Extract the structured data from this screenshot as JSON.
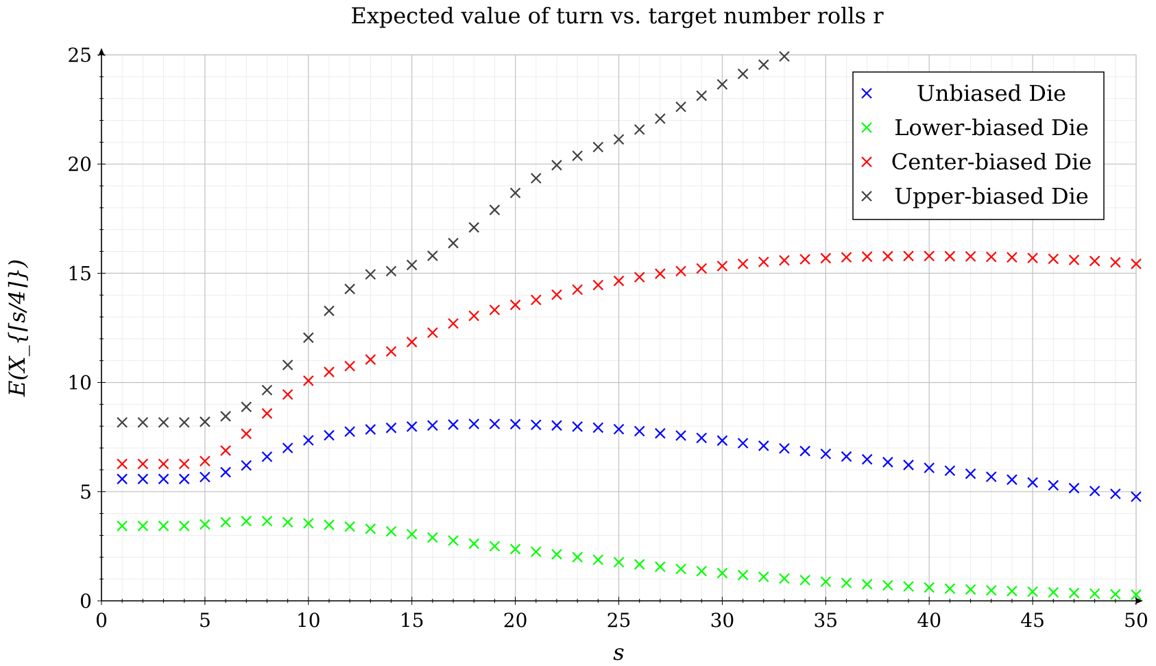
{
  "chart_data": {
    "type": "scatter",
    "title": "Expected value of turn vs. target number rolls r",
    "xlabel": "s",
    "ylabel": "E(X_{⌈s/4⌉})",
    "xlim": [
      0,
      50
    ],
    "ylim": [
      0,
      25
    ],
    "xticks": [
      0,
      5,
      10,
      15,
      20,
      25,
      30,
      35,
      40,
      45,
      50
    ],
    "yticks": [
      0,
      5,
      10,
      15,
      20,
      25
    ],
    "grid": true,
    "legend_position": "top-right",
    "series": [
      {
        "name": "Unbiased Die",
        "color": "#0000ff",
        "x": [
          1,
          2,
          3,
          4,
          5,
          6,
          7,
          8,
          9,
          10,
          11,
          12,
          13,
          14,
          15,
          16,
          17,
          18,
          19,
          20,
          21,
          22,
          23,
          24,
          25,
          26,
          27,
          28,
          29,
          30,
          31,
          32,
          33,
          34,
          35,
          36,
          37,
          38,
          39,
          40,
          41,
          42,
          43,
          44,
          45,
          46,
          47,
          48,
          49,
          50
        ],
        "y": [
          5.58,
          5.58,
          5.58,
          5.58,
          5.67,
          5.89,
          6.2,
          6.6,
          7.0,
          7.35,
          7.58,
          7.75,
          7.85,
          7.92,
          7.98,
          8.03,
          8.07,
          8.1,
          8.1,
          8.09,
          8.06,
          8.03,
          7.98,
          7.93,
          7.86,
          7.77,
          7.67,
          7.57,
          7.46,
          7.34,
          7.22,
          7.1,
          6.98,
          6.86,
          6.73,
          6.61,
          6.48,
          6.35,
          6.22,
          6.09,
          5.96,
          5.82,
          5.68,
          5.55,
          5.42,
          5.29,
          5.16,
          5.03,
          4.9,
          4.77
        ]
      },
      {
        "name": "Lower-biased Die",
        "color": "#00ff00",
        "x": [
          1,
          2,
          3,
          4,
          5,
          6,
          7,
          8,
          9,
          10,
          11,
          12,
          13,
          14,
          15,
          16,
          17,
          18,
          19,
          20,
          21,
          22,
          23,
          24,
          25,
          26,
          27,
          28,
          29,
          30,
          31,
          32,
          33,
          34,
          35,
          36,
          37,
          38,
          39,
          40,
          41,
          42,
          43,
          44,
          45,
          46,
          47,
          48,
          49,
          50
        ],
        "y": [
          3.43,
          3.43,
          3.43,
          3.43,
          3.5,
          3.6,
          3.65,
          3.65,
          3.6,
          3.55,
          3.48,
          3.4,
          3.3,
          3.18,
          3.05,
          2.9,
          2.76,
          2.62,
          2.5,
          2.37,
          2.25,
          2.13,
          2.0,
          1.88,
          1.77,
          1.67,
          1.56,
          1.46,
          1.36,
          1.27,
          1.18,
          1.1,
          1.02,
          0.95,
          0.88,
          0.82,
          0.76,
          0.71,
          0.66,
          0.61,
          0.56,
          0.52,
          0.48,
          0.45,
          0.42,
          0.39,
          0.36,
          0.33,
          0.3,
          0.28
        ]
      },
      {
        "name": "Center-biased Die",
        "color": "#ff0000",
        "x": [
          1,
          2,
          3,
          4,
          5,
          6,
          7,
          8,
          9,
          10,
          11,
          12,
          13,
          14,
          15,
          16,
          17,
          18,
          19,
          20,
          21,
          22,
          23,
          24,
          25,
          26,
          27,
          28,
          29,
          30,
          31,
          32,
          33,
          34,
          35,
          36,
          37,
          38,
          39,
          40,
          41,
          42,
          43,
          44,
          45,
          46,
          47,
          48,
          49,
          50
        ],
        "y": [
          6.27,
          6.27,
          6.27,
          6.27,
          6.4,
          6.88,
          7.65,
          8.58,
          9.45,
          10.08,
          10.48,
          10.75,
          11.05,
          11.42,
          11.85,
          12.28,
          12.7,
          13.05,
          13.32,
          13.55,
          13.78,
          14.02,
          14.25,
          14.46,
          14.65,
          14.82,
          14.98,
          15.1,
          15.22,
          15.33,
          15.43,
          15.52,
          15.59,
          15.64,
          15.69,
          15.73,
          15.76,
          15.78,
          15.79,
          15.79,
          15.78,
          15.77,
          15.75,
          15.73,
          15.7,
          15.66,
          15.61,
          15.56,
          15.5,
          15.43
        ]
      },
      {
        "name": "Upper-biased Die",
        "color": "#404040",
        "x": [
          1,
          2,
          3,
          4,
          5,
          6,
          7,
          8,
          9,
          10,
          11,
          12,
          13,
          14,
          15,
          16,
          17,
          18,
          19,
          20,
          21,
          22,
          23,
          24,
          25,
          26,
          27,
          28,
          29,
          30,
          31,
          32,
          33
        ],
        "y": [
          8.17,
          8.17,
          8.17,
          8.17,
          8.2,
          8.45,
          8.88,
          9.65,
          10.8,
          12.05,
          13.28,
          14.28,
          14.95,
          15.1,
          15.38,
          15.8,
          16.38,
          17.1,
          17.9,
          18.68,
          19.35,
          19.95,
          20.38,
          20.78,
          21.13,
          21.58,
          22.08,
          22.62,
          23.13,
          23.65,
          24.13,
          24.55,
          24.93
        ]
      }
    ]
  }
}
